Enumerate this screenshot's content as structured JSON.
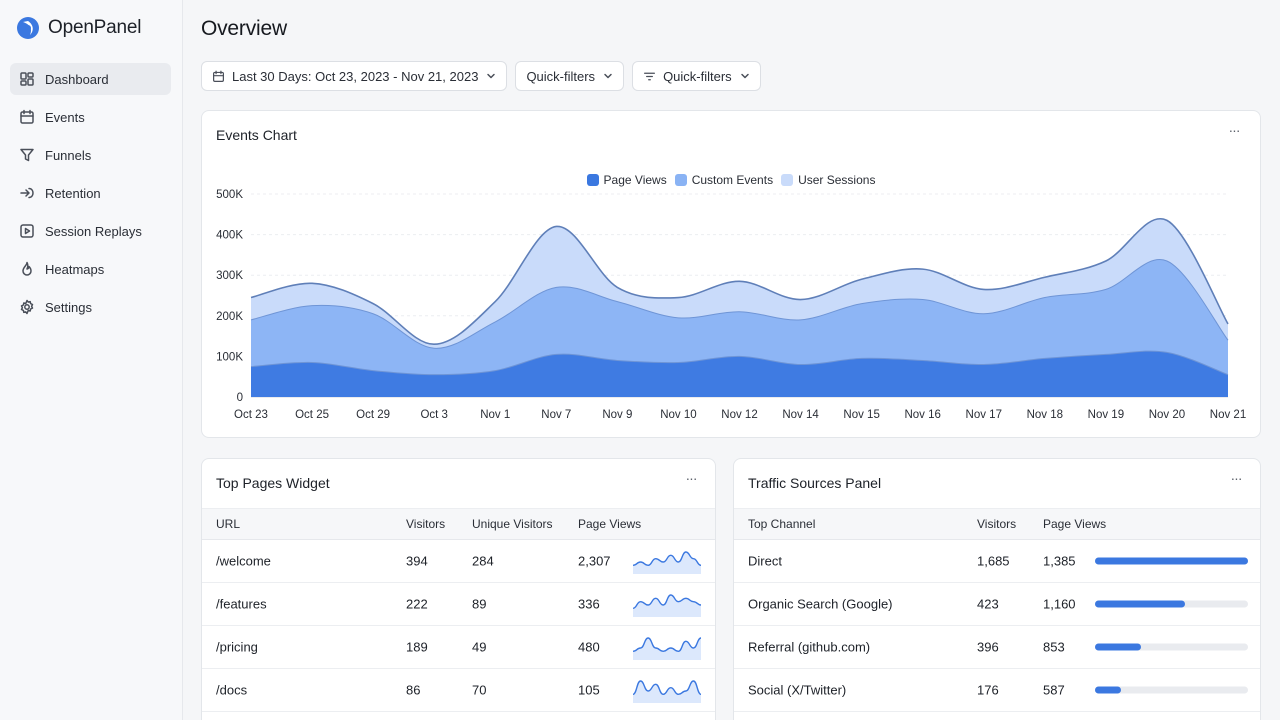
{
  "app": {
    "name": "OpenPanel"
  },
  "sidebar": {
    "items": [
      {
        "label": "Dashboard",
        "icon": "dashboard-icon",
        "active": true
      },
      {
        "label": "Events",
        "icon": "calendar-icon"
      },
      {
        "label": "Funnels",
        "icon": "funnel-icon"
      },
      {
        "label": "Retention",
        "icon": "retention-icon"
      },
      {
        "label": "Session Replays",
        "icon": "play-icon"
      },
      {
        "label": "Heatmaps",
        "icon": "flame-icon"
      },
      {
        "label": "Settings",
        "icon": "gear-icon"
      }
    ]
  },
  "page": {
    "title": "Overview"
  },
  "filters": {
    "date_range": "Last 30 Days: Oct 23, 2023 - Nov 21, 2023",
    "quick_filters_1": "Quick-filters",
    "quick_filters_2": "Quick-filters"
  },
  "colors": {
    "accent": "#3b78e0",
    "page_views": "#3b78e0",
    "custom_events": "#8ab3f4",
    "user_sessions": "#c9dbfa",
    "line": "#5f7fb8"
  },
  "events_chart": {
    "title": "Events Chart",
    "menu": "···"
  },
  "chart_data": {
    "type": "area",
    "stacked": true,
    "legend": "top-center",
    "grid": true,
    "x": [
      "Oct 23",
      "Oct 25",
      "Oct 29",
      "Oct 3",
      "Nov 1",
      "Nov 7",
      "Nov 9",
      "Nov 10",
      "Nov 12",
      "Nov 14",
      "Nov 15",
      "Nov 16",
      "Nov 17",
      "Nov 18",
      "Nov 19",
      "Nov 20",
      "Nov 21"
    ],
    "ylim": [
      0,
      500000
    ],
    "yticks": [
      {
        "value": 0,
        "label": "0"
      },
      {
        "value": 100000,
        "label": "100K"
      },
      {
        "value": 200000,
        "label": "200K"
      },
      {
        "value": 300000,
        "label": "300K"
      },
      {
        "value": 400000,
        "label": "400K"
      },
      {
        "value": 500000,
        "label": "500K"
      }
    ],
    "series": [
      {
        "name": "Page Views",
        "values": [
          75000,
          85000,
          65000,
          55000,
          65000,
          105000,
          90000,
          85000,
          100000,
          80000,
          95000,
          90000,
          80000,
          95000,
          105000,
          110000,
          55000
        ]
      },
      {
        "name": "Custom Events",
        "values": [
          115000,
          140000,
          140000,
          65000,
          120000,
          165000,
          145000,
          110000,
          110000,
          110000,
          135000,
          150000,
          125000,
          150000,
          160000,
          225000,
          85000
        ]
      },
      {
        "name": "User Sessions",
        "values": [
          55000,
          55000,
          25000,
          10000,
          50000,
          150000,
          35000,
          50000,
          75000,
          50000,
          60000,
          75000,
          60000,
          50000,
          70000,
          100000,
          40000
        ]
      }
    ]
  },
  "top_pages": {
    "title": "Top Pages Widget",
    "menu": "···",
    "columns": {
      "url": "URL",
      "visitors": "Visitors",
      "unique": "Unique Visitors",
      "views": "Page Views"
    },
    "rows": [
      {
        "url": "/welcome",
        "visitors": "394",
        "unique": "284",
        "views": "2,307",
        "trend": [
          2,
          3,
          2,
          4,
          3,
          5,
          3,
          6,
          4,
          2
        ]
      },
      {
        "url": "/features",
        "visitors": "222",
        "unique": "89",
        "views": "336",
        "trend": [
          2,
          4,
          3,
          5,
          3,
          6,
          4,
          5,
          4,
          3
        ]
      },
      {
        "url": "/pricing",
        "visitors": "189",
        "unique": "49",
        "views": "480",
        "trend": [
          2,
          3,
          6,
          3,
          2,
          3,
          2,
          5,
          3,
          6
        ]
      },
      {
        "url": "/docs",
        "visitors": "86",
        "unique": "70",
        "views": "105",
        "trend": [
          2,
          6,
          3,
          5,
          2,
          4,
          2,
          3,
          6,
          2
        ]
      }
    ]
  },
  "traffic_sources": {
    "title": "Traffic Sources Panel",
    "menu": "···",
    "columns": {
      "channel": "Top Channel",
      "visitors": "Visitors",
      "views": "Page Views"
    },
    "rows": [
      {
        "channel": "Direct",
        "visitors": "1,685",
        "views": "1,385",
        "share": 1.0
      },
      {
        "channel": "Organic Search (Google)",
        "visitors": "423",
        "views": "1,160",
        "share": 0.59
      },
      {
        "channel": "Referral (github.com)",
        "visitors": "396",
        "views": "853",
        "share": 0.3
      },
      {
        "channel": "Social (X/Twitter)",
        "visitors": "176",
        "views": "587",
        "share": 0.17
      }
    ]
  }
}
